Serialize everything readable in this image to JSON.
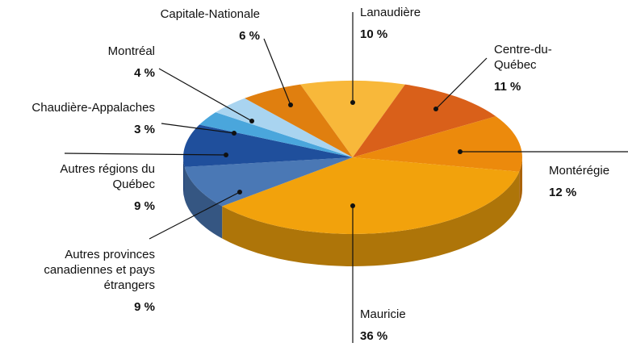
{
  "chart_data": {
    "type": "pie3d",
    "categories": [
      "Lanaudière",
      "Centre-du-Québec",
      "Montérégie",
      "Mauricie",
      "Autres provinces canadiennes et pays étrangers",
      "Autres régions du Québec",
      "Chaudière-Appalaches",
      "Montréal",
      "Capitale-Nationale"
    ],
    "values": [
      10,
      11,
      12,
      36,
      9,
      9,
      3,
      4,
      6
    ],
    "value_labels": [
      "10 %",
      "11 %",
      "12 %",
      "36 %",
      "9 %",
      "9 %",
      "3 %",
      "4 %",
      "6 %"
    ],
    "colors": [
      "#f8b83a",
      "#d9601a",
      "#ec8a0c",
      "#f2a20c",
      "#4a78b5",
      "#1f4f9c",
      "#4aa6dc",
      "#a9d4f0",
      "#e07f0f"
    ]
  }
}
